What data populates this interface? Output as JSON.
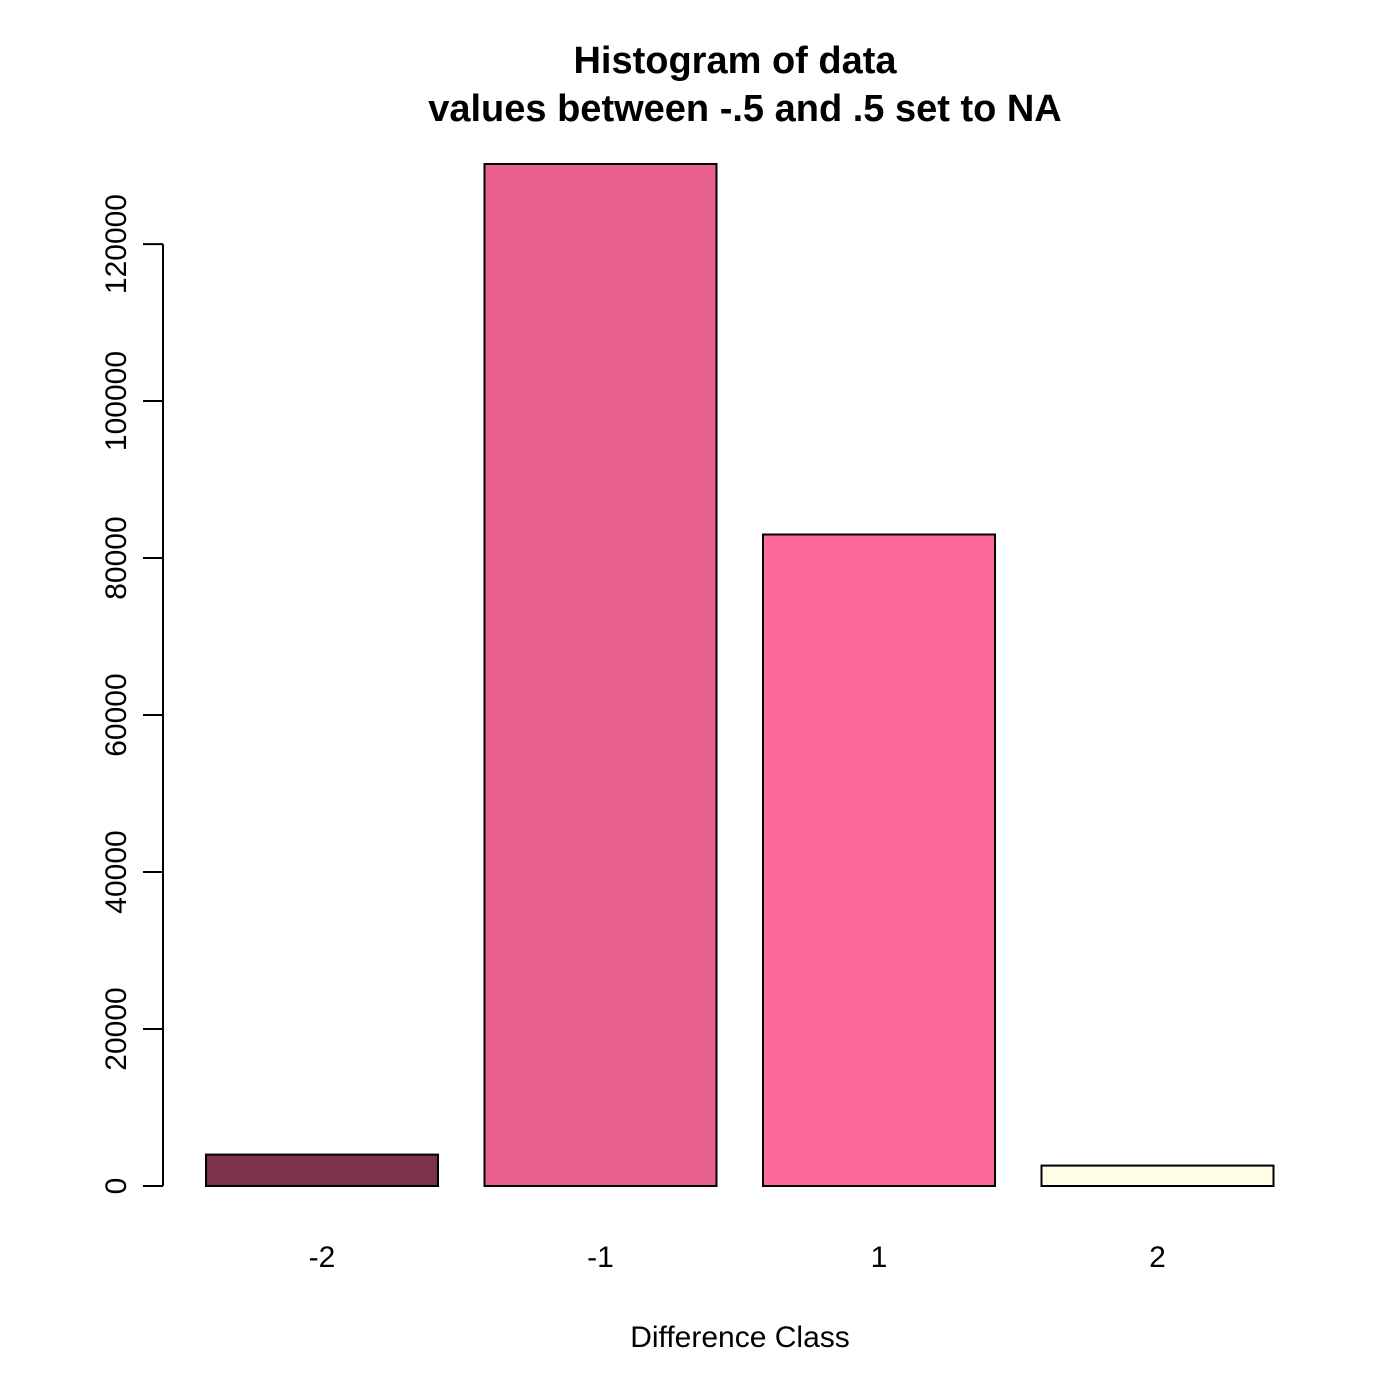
{
  "chart_data": {
    "type": "bar",
    "title": "Histogram of data",
    "subtitle": "values between -.5 and .5 set to NA",
    "xlabel": "Difference Class",
    "ylabel": "",
    "categories": [
      "-2",
      "-1",
      "1",
      "2"
    ],
    "values": [
      4000,
      130200,
      83000,
      2600
    ],
    "colors": [
      "#7A324D",
      "#E8628D",
      "#FC6A99",
      "#FFFDE6"
    ],
    "ylim": [
      0,
      130200
    ],
    "yticks": [
      0,
      20000,
      40000,
      60000,
      80000,
      100000,
      120000
    ],
    "ytick_labels": [
      "0",
      "20000",
      "40000",
      "60000",
      "80000",
      "100000",
      "120000"
    ],
    "grid": false,
    "legend": "none"
  }
}
